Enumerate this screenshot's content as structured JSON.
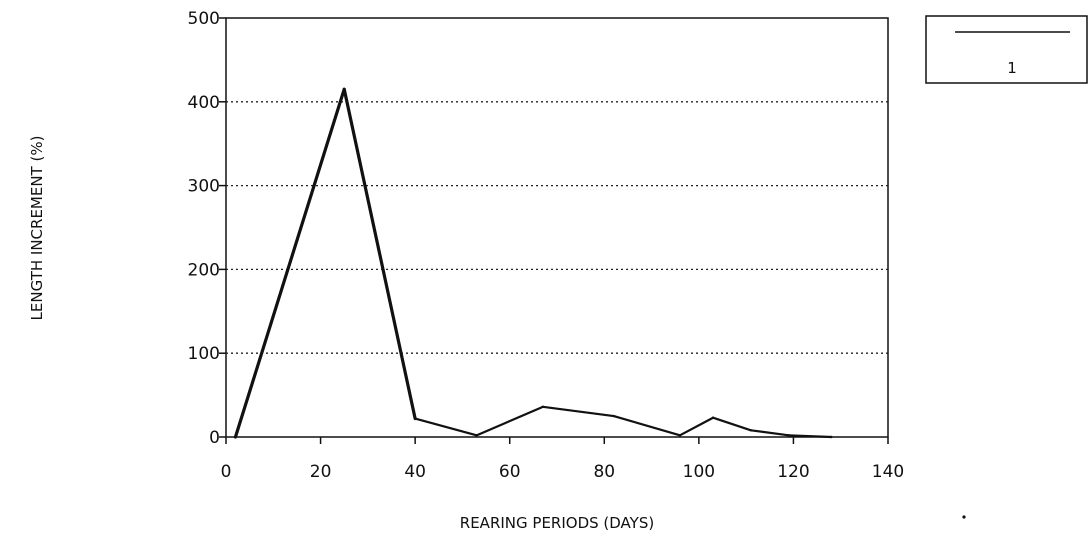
{
  "chart_data": {
    "type": "line",
    "title": "",
    "xlabel": "REARING PERIODS (DAYS)",
    "ylabel": "LENGTH INCREMENT (%)",
    "xlim": [
      0,
      140
    ],
    "ylim": [
      0,
      500
    ],
    "xticks": [
      "0",
      "20",
      "40",
      "60",
      "80",
      "100",
      "120",
      "140"
    ],
    "yticks": [
      "0",
      "100",
      "200",
      "300",
      "400",
      "500"
    ],
    "grid": "horizontal-dotted",
    "legend_position": "top-right",
    "series": [
      {
        "name": "1",
        "color": "#111111",
        "points": [
          {
            "x": 2,
            "y": 0
          },
          {
            "x": 25,
            "y": 415
          },
          {
            "x": 40,
            "y": 22
          },
          {
            "x": 53,
            "y": 2
          },
          {
            "x": 67,
            "y": 36
          },
          {
            "x": 82,
            "y": 25
          },
          {
            "x": 96,
            "y": 2
          },
          {
            "x": 103,
            "y": 23
          },
          {
            "x": 111,
            "y": 8
          },
          {
            "x": 119,
            "y": 2
          },
          {
            "x": 128,
            "y": 0
          }
        ]
      }
    ]
  }
}
